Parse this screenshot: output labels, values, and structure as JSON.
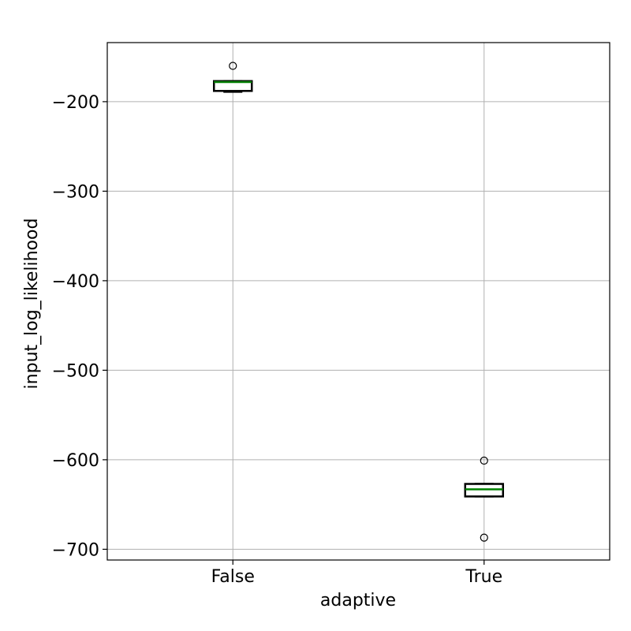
{
  "chart_data": {
    "type": "box",
    "title": "",
    "xlabel": "adaptive",
    "ylabel": "input_log_likelihood",
    "categories": [
      "False",
      "True"
    ],
    "ylim": [
      -712,
      -134
    ],
    "yticks": [
      -200,
      -300,
      -400,
      -500,
      -600,
      -700
    ],
    "ytick_labels": [
      "−200",
      "−300",
      "−400",
      "−500",
      "−600",
      "−700"
    ],
    "grid": true,
    "boxes": [
      {
        "category": "False",
        "whislo": -189,
        "q1": -188,
        "median": -178,
        "q3": -177,
        "whishi": -177,
        "fliers": [
          -160
        ]
      },
      {
        "category": "True",
        "whislo": -641,
        "q1": -641,
        "median": -633,
        "q3": -627,
        "whishi": -627,
        "fliers": [
          -601,
          -687
        ]
      }
    ],
    "colors": {
      "median": "#008000",
      "box": "#000000",
      "grid": "#b0b0b0"
    }
  }
}
